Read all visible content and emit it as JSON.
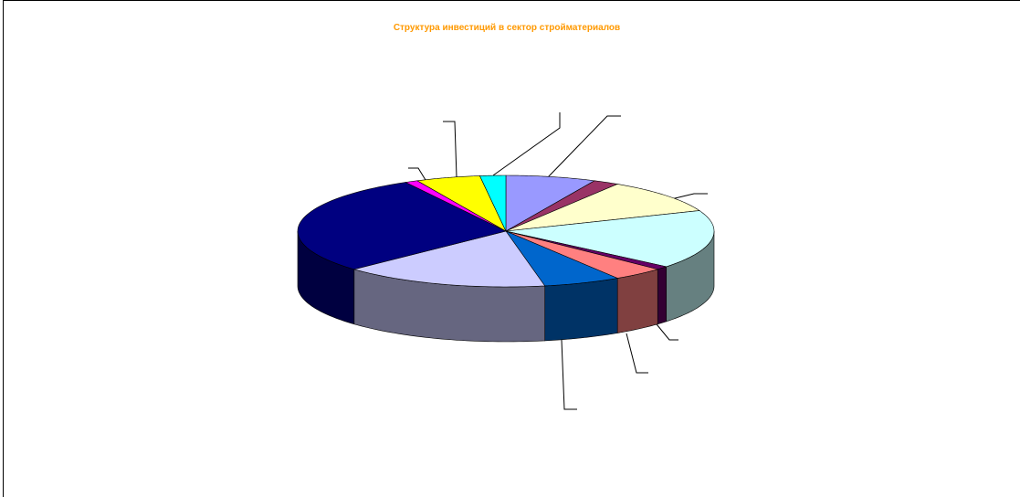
{
  "chart_data": {
    "type": "pie3d",
    "title": "Структура инвестиций в  сектор  стройматериалов",
    "values": [
      7,
      2,
      10,
      17,
      1,
      4,
      6,
      16,
      29,
      1,
      5,
      2
    ],
    "colors": [
      "#9999ff",
      "#993366",
      "#ffffcc",
      "#ccffff",
      "#660066",
      "#ff8080",
      "#0066cc",
      "#ccccff",
      "#000080",
      "#ff00ff",
      "#ffff00",
      "#00ffff"
    ]
  }
}
